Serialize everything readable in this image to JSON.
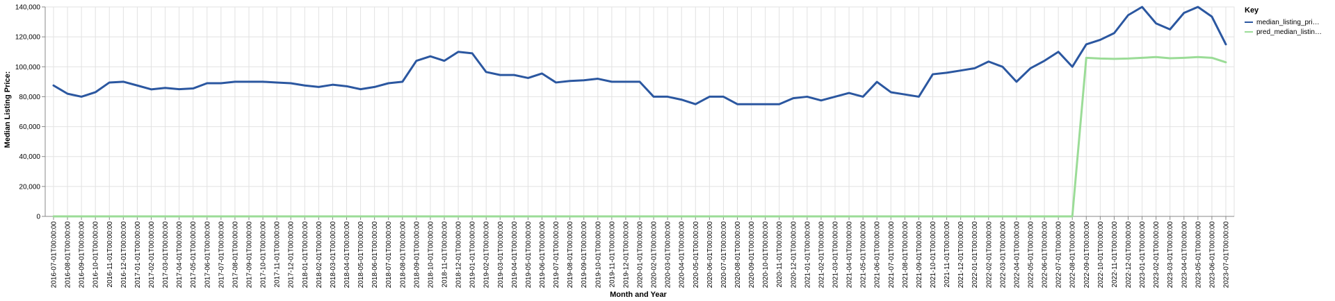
{
  "chart_data": {
    "type": "line",
    "xlabel": "Month and Year",
    "ylabel": "Median Listing Price:",
    "ylim": [
      0,
      140000
    ],
    "yticks": [
      "0",
      "20,000",
      "40,000",
      "60,000",
      "80,000",
      "100,000",
      "120,000",
      "140,000"
    ],
    "grid": true,
    "legend": {
      "title": "Key",
      "placement": "right",
      "labels": [
        "median_listing_pri…",
        "pred_median_listin…"
      ]
    },
    "colors": {
      "actual": "#2b57a0",
      "predicted": "#9bdc97",
      "grid": "#e2e2e2",
      "axis": "#888888"
    },
    "x": [
      "2016-07-01T00:00:00",
      "2016-08-01T00:00:00",
      "2016-09-01T00:00:00",
      "2016-10-01T00:00:00",
      "2016-11-01T00:00:00",
      "2016-12-01T00:00:00",
      "2017-01-01T00:00:00",
      "2017-02-01T00:00:00",
      "2017-03-01T00:00:00",
      "2017-04-01T00:00:00",
      "2017-05-01T00:00:00",
      "2017-06-01T00:00:00",
      "2017-07-01T00:00:00",
      "2017-08-01T00:00:00",
      "2017-09-01T00:00:00",
      "2017-10-01T00:00:00",
      "2017-11-01T00:00:00",
      "2017-12-01T00:00:00",
      "2018-01-01T00:00:00",
      "2018-02-01T00:00:00",
      "2018-03-01T00:00:00",
      "2018-04-01T00:00:00",
      "2018-05-01T00:00:00",
      "2018-06-01T00:00:00",
      "2018-07-01T00:00:00",
      "2018-08-01T00:00:00",
      "2018-09-01T00:00:00",
      "2018-10-01T00:00:00",
      "2018-11-01T00:00:00",
      "2018-12-01T00:00:00",
      "2019-01-01T00:00:00",
      "2019-02-01T00:00:00",
      "2019-03-01T00:00:00",
      "2019-04-01T00:00:00",
      "2019-05-01T00:00:00",
      "2019-06-01T00:00:00",
      "2019-07-01T00:00:00",
      "2019-08-01T00:00:00",
      "2019-09-01T00:00:00",
      "2019-10-01T00:00:00",
      "2019-11-01T00:00:00",
      "2019-12-01T00:00:00",
      "2020-01-01T00:00:00",
      "2020-02-01T00:00:00",
      "2020-03-01T00:00:00",
      "2020-04-01T00:00:00",
      "2020-05-01T00:00:00",
      "2020-06-01T00:00:00",
      "2020-07-01T00:00:00",
      "2020-08-01T00:00:00",
      "2020-09-01T00:00:00",
      "2020-10-01T00:00:00",
      "2020-11-01T00:00:00",
      "2020-12-01T00:00:00",
      "2021-01-01T00:00:00",
      "2021-02-01T00:00:00",
      "2021-03-01T00:00:00",
      "2021-04-01T00:00:00",
      "2021-05-01T00:00:00",
      "2021-06-01T00:00:00",
      "2021-07-01T00:00:00",
      "2021-08-01T00:00:00",
      "2021-09-01T00:00:00",
      "2021-10-01T00:00:00",
      "2021-11-01T00:00:00",
      "2021-12-01T00:00:00",
      "2022-01-01T00:00:00",
      "2022-02-01T00:00:00",
      "2022-03-01T00:00:00",
      "2022-04-01T00:00:00",
      "2022-05-01T00:00:00",
      "2022-06-01T00:00:00",
      "2022-07-01T00:00:00",
      "2022-08-01T00:00:00",
      "2022-09-01T00:00:00",
      "2022-10-01T00:00:00",
      "2022-11-01T00:00:00",
      "2022-12-01T00:00:00",
      "2023-01-01T00:00:00",
      "2023-02-01T00:00:00",
      "2023-03-01T00:00:00",
      "2023-04-01T00:00:00",
      "2023-05-01T00:00:00",
      "2023-06-01T00:00:00",
      "2023-07-01T00:00:00"
    ],
    "series": [
      {
        "name": "median_listing_pri…",
        "values": [
          87500,
          82000,
          80000,
          83000,
          89500,
          90000,
          87500,
          84900,
          85900,
          85000,
          85500,
          89000,
          89000,
          90000,
          90000,
          90000,
          89500,
          89000,
          87500,
          86500,
          88000,
          87000,
          85000,
          86500,
          89000,
          90000,
          104000,
          107000,
          104000,
          110000,
          109000,
          96500,
          94500,
          94500,
          92500,
          95500,
          89500,
          90500,
          91000,
          92000,
          90000,
          90000,
          90000,
          80000,
          80000,
          78000,
          75000,
          80000,
          80000,
          75000,
          75000,
          75000,
          75000,
          79000,
          80000,
          77500,
          80000,
          82500,
          80000,
          89900,
          83000,
          81500,
          80000,
          95000,
          96000,
          97500,
          99000,
          103500,
          100000,
          90000,
          99000,
          104000,
          110000,
          100000,
          115000,
          118000,
          122500,
          134500,
          140000,
          129000,
          125000,
          136000,
          140000,
          133500,
          115000
        ]
      },
      {
        "name": "pred_median_listin…",
        "values": [
          0,
          0,
          0,
          0,
          0,
          0,
          0,
          0,
          0,
          0,
          0,
          0,
          0,
          0,
          0,
          0,
          0,
          0,
          0,
          0,
          0,
          0,
          0,
          0,
          0,
          0,
          0,
          0,
          0,
          0,
          0,
          0,
          0,
          0,
          0,
          0,
          0,
          0,
          0,
          0,
          0,
          0,
          0,
          0,
          0,
          0,
          0,
          0,
          0,
          0,
          0,
          0,
          0,
          0,
          0,
          0,
          0,
          0,
          0,
          0,
          0,
          0,
          0,
          0,
          0,
          0,
          0,
          0,
          0,
          0,
          0,
          0,
          0,
          0,
          106000,
          105500,
          105300,
          105500,
          106000,
          106500,
          105700,
          106000,
          106500,
          106000,
          103000
        ]
      }
    ]
  }
}
